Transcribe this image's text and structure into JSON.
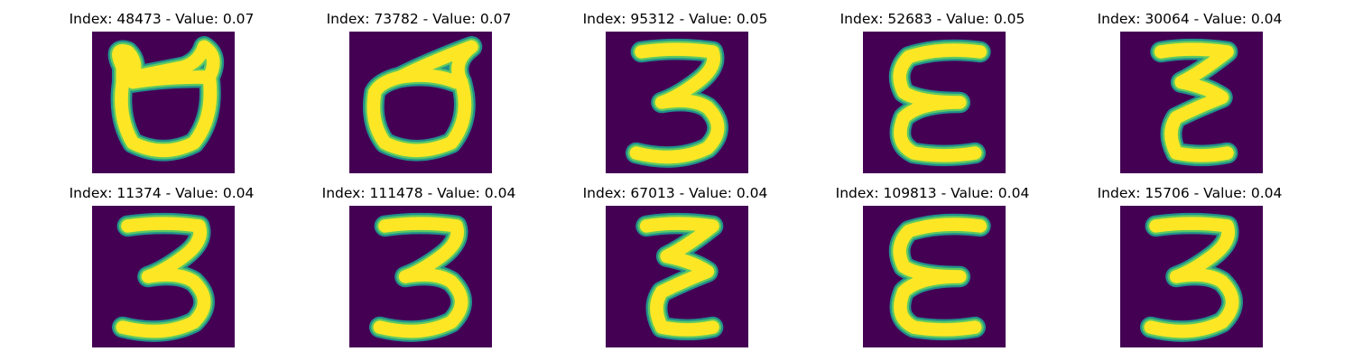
{
  "figure": {
    "panels": [
      {
        "title": "Index: 48473 - Value: 0.07",
        "glyph": "open-frame-digit-icon"
      },
      {
        "title": "Index: 73782 - Value: 0.07",
        "glyph": "tilted-open-frame-digit-icon"
      },
      {
        "title": "Index: 95312 - Value: 0.05",
        "glyph": "digit-three-icon"
      },
      {
        "title": "Index: 52683 - Value: 0.05",
        "glyph": "epsilon-glyph-icon"
      },
      {
        "title": "Index: 30064 - Value: 0.04",
        "glyph": "zigzag-epsilon-glyph-icon"
      },
      {
        "title": "Index: 11374 - Value: 0.04",
        "glyph": "digit-three-icon"
      },
      {
        "title": "Index: 111478 - Value: 0.04",
        "glyph": "digit-three-icon"
      },
      {
        "title": "Index: 67013 - Value: 0.04",
        "glyph": "zigzag-epsilon-glyph-icon"
      },
      {
        "title": "Index: 109813 - Value: 0.04",
        "glyph": "epsilon-glyph-icon"
      },
      {
        "title": "Index: 15706 - Value: 0.04",
        "glyph": "digit-three-icon"
      }
    ],
    "colors": {
      "background": "#440154",
      "stroke_edge": "#21918c",
      "stroke_mid": "#5ec962",
      "stroke_core": "#fde725"
    }
  }
}
